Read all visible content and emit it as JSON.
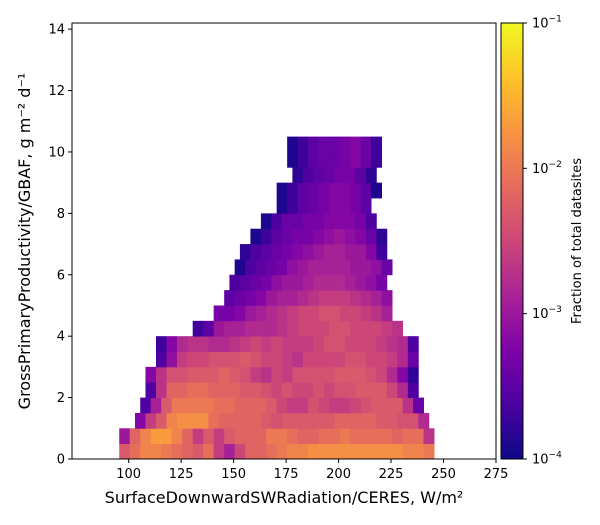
{
  "chart_data": {
    "type": "heatmap",
    "title": "",
    "xlabel": "SurfaceDownwardSWRadiation/CERES,  W/m²",
    "ylabel": "GrossPrimaryProductivity/GBAF,  g m⁻² d⁻¹",
    "xlim": [
      73,
      275
    ],
    "ylim": [
      0,
      14.2
    ],
    "x_ticks": [
      "100",
      "125",
      "150",
      "175",
      "200",
      "225",
      "250",
      "275"
    ],
    "y_ticks": [
      "0",
      "2",
      "4",
      "6",
      "8",
      "10",
      "12",
      "14"
    ],
    "x_bin_start": 73,
    "x_bin_width": 5.0,
    "y_bin_width": 0.5,
    "rows_from_bottom": [
      [
        -2.3,
        -2.1,
        -1.9,
        -1.9,
        -2.0,
        -2.1,
        -2.2,
        -2.3,
        -2.1,
        -2.6,
        -2.9,
        -2.5,
        -2.2,
        -2.2,
        -2.1,
        -2.0,
        -1.9,
        -1.9,
        -1.8,
        -1.8,
        -1.8,
        -1.8,
        -1.8,
        -1.8,
        -1.8,
        -1.8,
        -1.8,
        -1.9,
        -1.9,
        -2.0
      ],
      [
        -3.0,
        -2.2,
        -1.9,
        -1.7,
        -1.7,
        -1.9,
        -2.2,
        -2.6,
        -2.3,
        -2.6,
        -2.3,
        -2.2,
        -2.2,
        -2.2,
        -2.0,
        -2.0,
        -2.1,
        -2.2,
        -2.2,
        -2.1,
        -2.1,
        -2.0,
        -2.1,
        -2.1,
        -2.1,
        -2.1,
        -2.2,
        -2.1,
        -2.1,
        -2.7
      ],
      [
        -3.2,
        -2.6,
        -2.3,
        -1.9,
        -1.8,
        -1.8,
        -1.8,
        -2.1,
        -2.2,
        -2.2,
        -2.2,
        -2.2,
        -2.3,
        -2.4,
        -2.3,
        -2.3,
        -2.3,
        -2.3,
        -2.3,
        -2.2,
        -2.2,
        -2.2,
        -2.2,
        -2.3,
        -2.3,
        -2.4,
        -2.4,
        -2.8
      ],
      [
        -3.6,
        -2.9,
        -2.3,
        -2.0,
        -2.0,
        -2.0,
        -2.0,
        -2.1,
        -2.1,
        -2.2,
        -2.2,
        -2.2,
        -2.3,
        -2.5,
        -2.6,
        -2.6,
        -2.4,
        -2.5,
        -2.6,
        -2.6,
        -2.5,
        -2.4,
        -2.3,
        -2.3,
        -2.3,
        -2.7,
        -3.4
      ],
      [
        -3.6,
        -2.7,
        -2.2,
        -2.2,
        -2.1,
        -2.1,
        -2.2,
        -2.2,
        -2.2,
        -2.3,
        -2.3,
        -2.4,
        -2.5,
        -2.4,
        -2.5,
        -2.5,
        -2.4,
        -2.5,
        -2.4,
        -2.4,
        -2.3,
        -2.3,
        -2.3,
        -2.5,
        -2.8,
        -3.6
      ],
      [
        -3.2,
        -2.7,
        -2.4,
        -2.4,
        -2.3,
        -2.3,
        -2.3,
        -2.2,
        -2.3,
        -2.4,
        -2.6,
        -2.7,
        -2.5,
        -2.6,
        -2.4,
        -2.4,
        -2.4,
        -2.4,
        -2.3,
        -2.3,
        -2.3,
        -2.4,
        -2.5,
        -2.8,
        -3.2,
        -3.8
      ],
      [
        -3.6,
        -3.1,
        -2.6,
        -2.5,
        -2.5,
        -2.4,
        -2.4,
        -2.4,
        -2.3,
        -2.4,
        -2.5,
        -2.5,
        -2.6,
        -2.7,
        -2.5,
        -2.5,
        -2.5,
        -2.5,
        -2.4,
        -2.4,
        -2.5,
        -2.5,
        -2.6,
        -2.8,
        -3.4
      ],
      [
        -3.7,
        -3.2,
        -2.8,
        -2.7,
        -2.7,
        -2.8,
        -2.8,
        -2.7,
        -2.6,
        -2.5,
        -2.6,
        -2.5,
        -2.6,
        -2.6,
        -2.6,
        -2.5,
        -2.4,
        -2.4,
        -2.5,
        -2.5,
        -2.5,
        -2.6,
        -2.7,
        -2.8,
        -3.6
      ],
      [
        -3.7,
        -3.5,
        -3.0,
        -2.9,
        -2.9,
        -2.8,
        -2.8,
        -2.8,
        -2.7,
        -2.6,
        -2.5,
        -2.5,
        -2.5,
        -2.4,
        -2.4,
        -2.5,
        -2.5,
        -2.5,
        -2.6,
        -2.7
      ],
      [
        -3.3,
        -3.3,
        -3.2,
        -3.0,
        -2.9,
        -2.8,
        -2.7,
        -2.6,
        -2.5,
        -2.5,
        -2.4,
        -2.4,
        -2.5,
        -2.5,
        -2.6,
        -2.7,
        -2.9
      ],
      [
        -3.5,
        -3.4,
        -3.3,
        -3.2,
        -3.0,
        -2.9,
        -2.9,
        -2.8,
        -2.7,
        -2.6,
        -2.6,
        -2.6,
        -2.7,
        -2.8,
        -2.9,
        -3.1
      ],
      [
        -3.6,
        -3.5,
        -3.4,
        -3.3,
        -3.1,
        -3.0,
        -3.0,
        -2.9,
        -2.8,
        -2.8,
        -2.8,
        -2.9,
        -3.0,
        -3.1,
        -3.3
      ],
      [
        -3.9,
        -3.6,
        -3.5,
        -3.4,
        -3.3,
        -3.1,
        -3.0,
        -2.9,
        -2.9,
        -2.9,
        -2.9,
        -3.0,
        -3.0,
        -3.1,
        -3.4
      ],
      [
        -3.8,
        -3.6,
        -3.5,
        -3.4,
        -3.3,
        -3.2,
        -3.1,
        -3.0,
        -2.9,
        -2.9,
        -3.0,
        -3.0,
        -3.2,
        -3.7
      ],
      [
        -3.9,
        -3.7,
        -3.5,
        -3.4,
        -3.3,
        -3.3,
        -3.2,
        -3.1,
        -3.0,
        -3.1,
        -3.2,
        -3.4,
        -3.8
      ],
      [
        -3.9,
        -3.6,
        -3.4,
        -3.4,
        -3.3,
        -3.3,
        -3.2,
        -3.2,
        -3.2,
        -3.3,
        -3.6
      ],
      [
        -3.9,
        -3.7,
        -3.5,
        -3.4,
        -3.3,
        -3.2,
        -3.2,
        -3.3,
        -3.5
      ],
      [
        -3.9,
        -3.7,
        -3.5,
        -3.4,
        -3.3,
        -3.2,
        -3.2,
        -3.3,
        -3.5,
        -3.9
      ],
      [
        -3.8,
        -3.6,
        -3.5,
        -3.4,
        -3.3,
        -3.3,
        -3.5,
        -3.8
      ],
      [
        -3.9,
        -3.7,
        -3.5,
        -3.4,
        -3.4,
        -3.3,
        -3.2,
        -3.4,
        -3.7
      ],
      [
        -3.9,
        -3.7,
        -3.5,
        -3.4,
        -3.4,
        -3.3,
        -3.2,
        -3.4,
        -3.7
      ]
    ],
    "colorbar": {
      "label": "Fraction of total datasites",
      "scale": "log",
      "range": [
        0.0001,
        0.1
      ],
      "tick_base": "10",
      "tick_exponents": [
        "−4",
        "−3",
        "−2",
        "−1"
      ],
      "colormap": "plasma"
    }
  }
}
